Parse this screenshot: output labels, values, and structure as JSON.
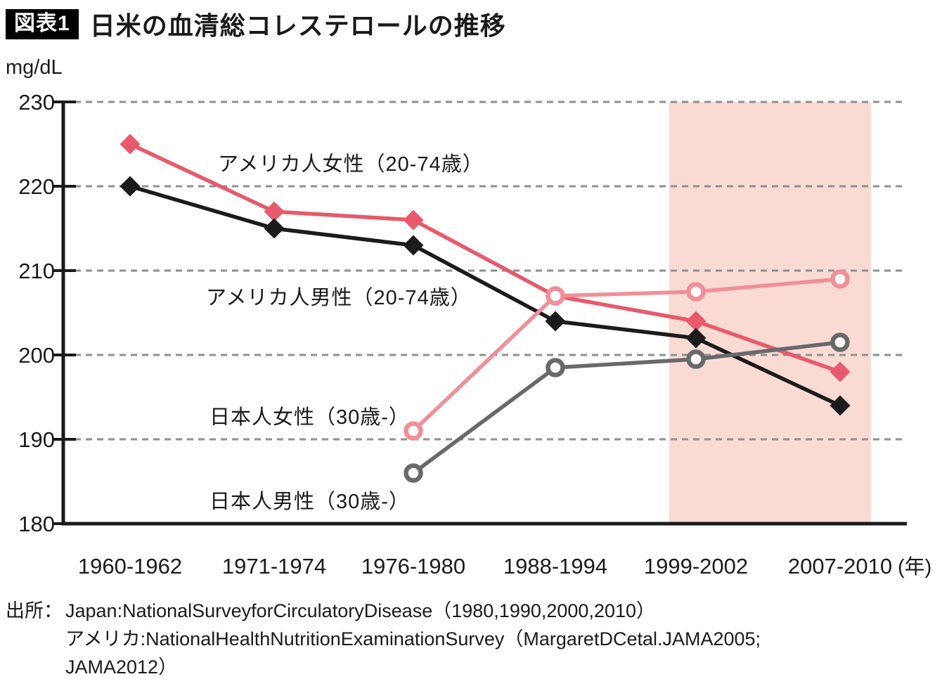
{
  "header": {
    "badge": "図表1",
    "title": "日米の血清総コレステロールの推移"
  },
  "chart_data": {
    "type": "line",
    "title": "日米の血清総コレステロールの推移",
    "ylabel": "mg/dL",
    "xlabel": "",
    "x_unit_suffix": "(年)",
    "categories": [
      "1960-1962",
      "1971-1974",
      "1976-1980",
      "1988-1994",
      "1999-2002",
      "2007-2010"
    ],
    "ylim": [
      180,
      230
    ],
    "yticks": [
      230,
      220,
      210,
      200,
      190,
      180
    ],
    "grid": "dashed-horizontal",
    "legend_position": "inline-annotations",
    "series": [
      {
        "key": "us-women",
        "name": "アメリカ人女性（20-74歳）",
        "marker": "diamond",
        "color": "#e8596b",
        "values": [
          225,
          217,
          216,
          207,
          204,
          198
        ]
      },
      {
        "key": "us-men",
        "name": "アメリカ人男性（20-74歳）",
        "marker": "diamond",
        "color": "#1b1b1b",
        "values": [
          220,
          215,
          213,
          204,
          202,
          194
        ]
      },
      {
        "key": "jp-men",
        "name": "日本人男性（30歳-）",
        "marker": "open-circle",
        "color": "#68696b",
        "values": [
          null,
          null,
          186,
          198.5,
          199.5,
          201.5
        ]
      },
      {
        "key": "jp-women",
        "name": "日本人女性（30歳-）",
        "marker": "open-circle",
        "color": "#f08f98",
        "values": [
          null,
          null,
          191,
          207,
          207.5,
          209
        ]
      }
    ],
    "highlight_band": {
      "start_category_index": 4,
      "end_category_index": 5,
      "color": "#fadbd4"
    },
    "colors": {
      "gridline": "#8f8f8f",
      "axis": "#1a1a1a",
      "text": "#1a1a1a"
    }
  },
  "source": {
    "label": "出所：",
    "lines": [
      "Japan:NationalSurveyforCirculatoryDisease（1980,1990,2000,2010）",
      "アメリカ:NationalHealthNutritionExaminationSurvey（MargaretDCetal.JAMA2005;",
      "JAMA2012）"
    ]
  }
}
